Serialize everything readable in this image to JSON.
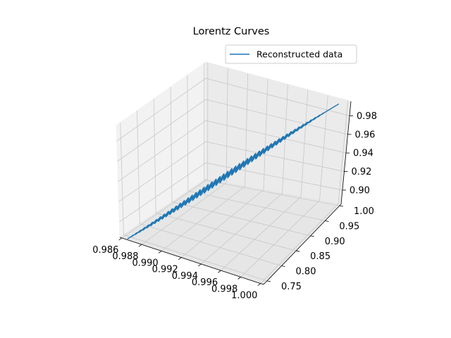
{
  "chart_data": {
    "type": "line",
    "projection": "3d",
    "title": "Lorentz Curves",
    "legend": {
      "placement": "upper-right",
      "entries": [
        {
          "label": "Reconstructed data",
          "color": "#1f77b4"
        }
      ]
    },
    "grid": true,
    "series": [
      {
        "name": "Reconstructed data",
        "color": "#1f77b4",
        "x_range": [
          0.9865,
          0.9996
        ],
        "y_range": [
          0.74,
          0.99
        ],
        "z_range": [
          0.885,
          0.995
        ]
      }
    ],
    "axes": {
      "x": {
        "ticks": [
          0.986,
          0.988,
          0.99,
          0.992,
          0.994,
          0.996,
          0.998,
          1.0
        ],
        "tick_labels": [
          "0.986",
          "0.988",
          "0.990",
          "0.992",
          "0.994",
          "0.996",
          "0.998",
          "1.000"
        ]
      },
      "y": {
        "ticks": [
          0.75,
          0.8,
          0.85,
          0.9,
          0.95,
          1.0
        ],
        "tick_labels": [
          "0.75",
          "0.80",
          "0.85",
          "0.90",
          "0.95",
          "1.00"
        ]
      },
      "z": {
        "ticks": [
          0.9,
          0.92,
          0.94,
          0.96,
          0.98
        ],
        "tick_labels": [
          "0.90",
          "0.92",
          "0.94",
          "0.96",
          "0.98"
        ]
      }
    }
  }
}
